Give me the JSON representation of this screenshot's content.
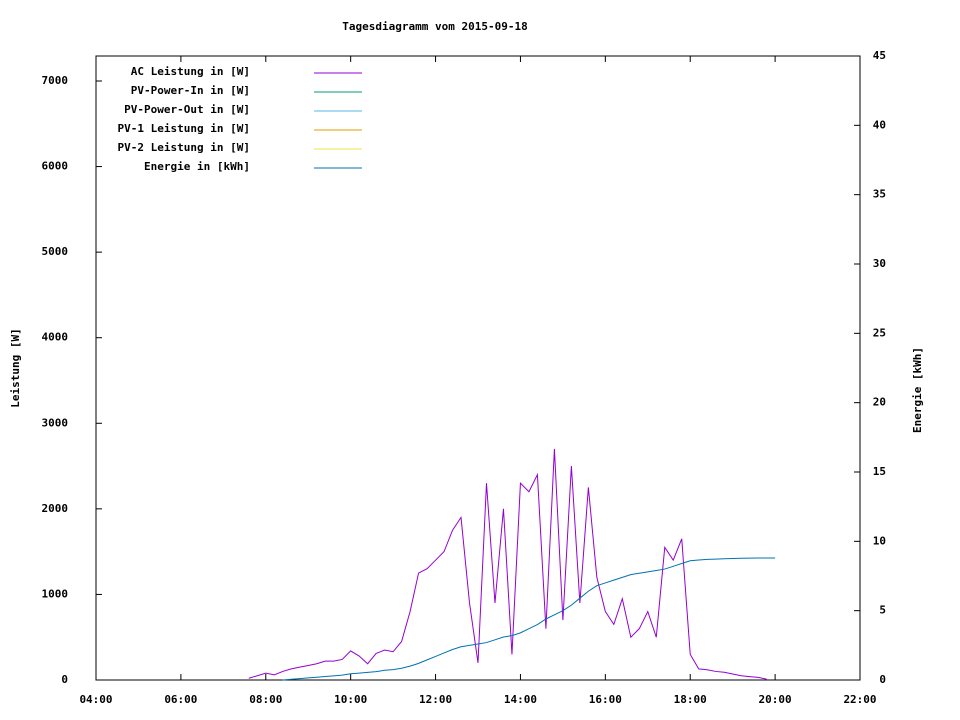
{
  "chart_data": {
    "type": "line",
    "title": "Tagesdiagramm vom 2015-09-18",
    "ylabel": "Leistung [W]",
    "y2label": "Energie [kWh]",
    "xlim": [
      4,
      22
    ],
    "xticks": [
      {
        "value": 4,
        "label": "04:00"
      },
      {
        "value": 6,
        "label": "06:00"
      },
      {
        "value": 8,
        "label": "08:00"
      },
      {
        "value": 10,
        "label": "10:00"
      },
      {
        "value": 12,
        "label": "12:00"
      },
      {
        "value": 14,
        "label": "14:00"
      },
      {
        "value": 16,
        "label": "16:00"
      },
      {
        "value": 18,
        "label": "18:00"
      },
      {
        "value": 20,
        "label": "20:00"
      },
      {
        "value": 22,
        "label": "22:00"
      }
    ],
    "ylim": [
      0,
      7292
    ],
    "yticks": [
      0,
      1000,
      2000,
      3000,
      4000,
      5000,
      6000,
      7000
    ],
    "y2lim": [
      0,
      45
    ],
    "y2ticks": [
      0,
      5,
      10,
      15,
      20,
      25,
      30,
      35,
      40,
      45
    ],
    "legend": "top-left",
    "x": [
      7.6,
      7.8,
      8.0,
      8.2,
      8.4,
      8.6,
      8.8,
      9.0,
      9.2,
      9.4,
      9.6,
      9.8,
      10.0,
      10.2,
      10.4,
      10.6,
      10.8,
      11.0,
      11.2,
      11.4,
      11.6,
      11.8,
      12.0,
      12.2,
      12.4,
      12.6,
      12.8,
      13.0,
      13.2,
      13.4,
      13.6,
      13.8,
      14.0,
      14.2,
      14.4,
      14.6,
      14.8,
      15.0,
      15.2,
      15.4,
      15.6,
      15.8,
      16.0,
      16.2,
      16.4,
      16.6,
      16.8,
      17.0,
      17.2,
      17.4,
      17.6,
      17.8,
      18.0,
      18.2,
      18.4,
      18.6,
      18.8,
      19.0,
      19.2,
      19.4,
      19.6,
      19.8,
      20.0
    ],
    "series": [
      {
        "name": "AC Leistung in [W]",
        "color": "#9400d3",
        "values": [
          20,
          50,
          80,
          60,
          100,
          130,
          150,
          170,
          190,
          220,
          220,
          240,
          340,
          280,
          190,
          310,
          350,
          330,
          450,
          800,
          1250,
          1300,
          1400,
          1500,
          1750,
          1900,
          900,
          200,
          2300,
          900,
          2000,
          300,
          2300,
          2200,
          2400,
          600,
          2700,
          700,
          2500,
          900,
          2250,
          1200,
          800,
          650,
          950,
          500,
          600,
          800,
          500,
          1550,
          1400,
          1650,
          300,
          130,
          120,
          100,
          90,
          70,
          50,
          40,
          30,
          10,
          null
        ]
      },
      {
        "name": "PV-Power-In in [W]",
        "color": "#009e73",
        "values": [
          null,
          null,
          null,
          null,
          null,
          null,
          null,
          null,
          null,
          null,
          null,
          null,
          null,
          null,
          null,
          null,
          null,
          null,
          null,
          null,
          null,
          null,
          null,
          null,
          null,
          null,
          null,
          null,
          null,
          null,
          null,
          null,
          null,
          null,
          null,
          null,
          null,
          null,
          null,
          null,
          null,
          null,
          null,
          null,
          null,
          null,
          null,
          null,
          null,
          null,
          null,
          null,
          null,
          null,
          null,
          null,
          null,
          null,
          null,
          null,
          null,
          null,
          null
        ]
      },
      {
        "name": "PV-Power-Out in [W]",
        "color": "#56b4e9",
        "values": [
          null,
          null,
          null,
          null,
          null,
          null,
          null,
          null,
          null,
          null,
          null,
          null,
          null,
          null,
          null,
          null,
          null,
          null,
          null,
          null,
          null,
          null,
          null,
          null,
          null,
          null,
          null,
          null,
          null,
          null,
          null,
          null,
          null,
          null,
          null,
          null,
          null,
          null,
          null,
          null,
          null,
          null,
          null,
          null,
          null,
          null,
          null,
          null,
          null,
          null,
          null,
          null,
          null,
          null,
          null,
          null,
          null,
          null,
          null,
          null,
          null,
          null,
          null
        ]
      },
      {
        "name": "PV-1 Leistung in [W]",
        "color": "#e69f00",
        "values": [
          null,
          null,
          null,
          null,
          null,
          null,
          null,
          null,
          null,
          null,
          null,
          null,
          null,
          null,
          null,
          null,
          null,
          null,
          null,
          null,
          null,
          null,
          null,
          null,
          null,
          null,
          null,
          null,
          null,
          null,
          null,
          null,
          null,
          null,
          null,
          null,
          null,
          null,
          null,
          null,
          null,
          null,
          null,
          null,
          null,
          null,
          null,
          null,
          null,
          null,
          null,
          null,
          null,
          null,
          null,
          null,
          null,
          null,
          null,
          null,
          null,
          null,
          null
        ]
      },
      {
        "name": "PV-2 Leistung in [W]",
        "color": "#f0e442",
        "values": [
          null,
          null,
          null,
          null,
          null,
          null,
          null,
          null,
          null,
          null,
          null,
          null,
          null,
          null,
          null,
          null,
          null,
          null,
          null,
          null,
          null,
          null,
          null,
          null,
          null,
          null,
          null,
          null,
          null,
          null,
          null,
          null,
          null,
          null,
          null,
          null,
          null,
          null,
          null,
          null,
          null,
          null,
          null,
          null,
          null,
          null,
          null,
          null,
          null,
          null,
          null,
          null,
          null,
          null,
          null,
          null,
          null,
          null,
          null,
          null,
          null,
          null,
          null
        ]
      },
      {
        "name": "Energie in [kWh]",
        "color": "#0072b2",
        "axis": "y2",
        "values": [
          null,
          null,
          null,
          null,
          0,
          0.05,
          0.1,
          0.15,
          0.2,
          0.25,
          0.3,
          0.35,
          0.45,
          0.5,
          0.55,
          0.6,
          0.7,
          0.75,
          0.85,
          1.0,
          1.2,
          1.45,
          1.7,
          1.95,
          2.2,
          2.4,
          2.5,
          2.6,
          2.7,
          2.9,
          3.1,
          3.2,
          3.4,
          3.7,
          4.0,
          4.4,
          4.7,
          5.0,
          5.4,
          5.9,
          6.4,
          6.8,
          7.0,
          7.2,
          7.4,
          7.6,
          7.7,
          7.8,
          7.9,
          8.0,
          8.2,
          8.4,
          8.6,
          8.65,
          8.7,
          8.72,
          8.74,
          8.76,
          8.78,
          8.79,
          8.8,
          8.8,
          8.8
        ]
      }
    ]
  }
}
